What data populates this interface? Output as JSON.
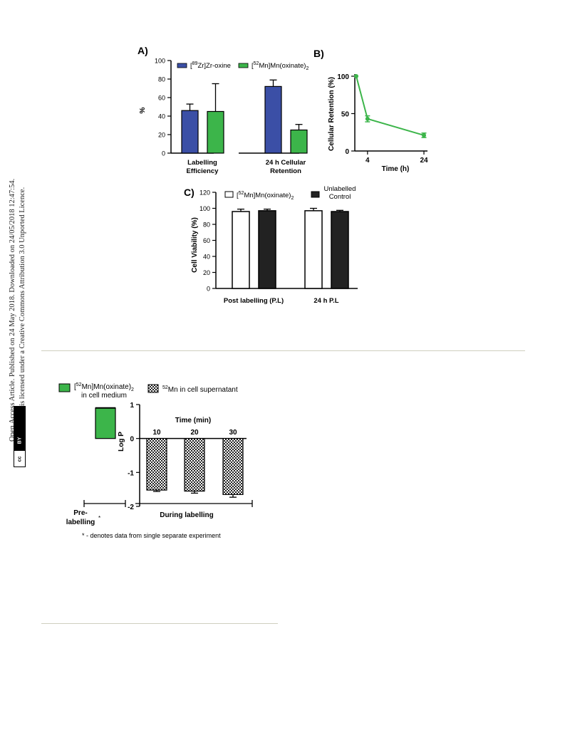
{
  "sidebar": {
    "line1": "Open Access Article. Published on 24 May 2018. Downloaded on 24/05/2018 12:47:54.",
    "line2": "This article is licensed under a Creative Commons Attribution 3.0 Unported Licence.",
    "badge_cc": "cc",
    "badge_by": "BY"
  },
  "colors": {
    "blue": "#3b4fa6",
    "green": "#3cb54a",
    "dark": "#222222",
    "rule": "#cfcfbf"
  },
  "chart_data": [
    {
      "panel": "A)",
      "type": "bar",
      "categories": [
        "Labelling Efficiency",
        "24 h Cellular Retention"
      ],
      "category_lines": [
        [
          "Labelling",
          "Efficiency"
        ],
        [
          "24 h Cellular",
          "Retention"
        ]
      ],
      "ylabel": "%",
      "ylim": [
        0,
        100
      ],
      "yticks": [
        "0",
        "20",
        "40",
        "60",
        "80",
        "100"
      ],
      "legend": [
        {
          "sup": "89",
          "pre": "[",
          "post": "Zr]Zr-oxine",
          "sub": ""
        },
        {
          "sup": "52",
          "pre": "[",
          "post": "Mn]Mn(oxinate)",
          "sub": "2"
        }
      ],
      "series": [
        {
          "values": [
            46,
            72
          ],
          "errors": [
            7,
            7
          ],
          "color": "#3b4fa6"
        },
        {
          "values": [
            45,
            25
          ],
          "errors": [
            30,
            6
          ],
          "color": "#3cb54a"
        }
      ]
    },
    {
      "panel": "B)",
      "type": "line",
      "x": [
        0,
        4,
        24
      ],
      "y": [
        100,
        43,
        21
      ],
      "errors": [
        0,
        4,
        3
      ],
      "xlabel": "Time (h)",
      "ylabel": "Cellular Retention (%)",
      "xticks": [
        "4",
        "24"
      ],
      "yticks": [
        "0",
        "50",
        "100"
      ],
      "ylim": [
        0,
        100
      ],
      "color": "#3cb54a"
    },
    {
      "panel": "C)",
      "type": "bar",
      "categories": [
        "Post labelling (P.L)",
        "24 h P.L"
      ],
      "ylabel": "Cell Viability  (%)",
      "ylim": [
        0,
        120
      ],
      "yticks": [
        "0",
        "20",
        "40",
        "60",
        "80",
        "100",
        "120"
      ],
      "legend": [
        {
          "sup": "52",
          "pre": "[",
          "post": "Mn]Mn(oxinate)",
          "sub": "2"
        },
        {
          "line1": "Unlabelled",
          "line2": "Control"
        }
      ],
      "series": [
        {
          "values": [
            96,
            97
          ],
          "errors": [
            3,
            3
          ],
          "fill": "#ffffff"
        },
        {
          "values": [
            97,
            96
          ],
          "errors": [
            2,
            1.5
          ],
          "fill": "#222222"
        }
      ]
    },
    {
      "type": "bar",
      "ylabel": "Log P",
      "ylim": [
        -2,
        1
      ],
      "yticks": [
        "1",
        "0",
        "-1",
        "-2"
      ],
      "xlabel_top": "Time (min)",
      "categories": [
        "10",
        "20",
        "30"
      ],
      "prelabelling": {
        "value": 0.9,
        "label_line1": "Pre-",
        "label_line2": "labelling",
        "asterisk": "*"
      },
      "series": [
        {
          "name": "in cell supernatant",
          "values": [
            -1.52,
            -1.55,
            -1.65
          ],
          "errors": [
            0.04,
            0.06,
            0.08
          ]
        }
      ],
      "prelabel_value": [
        0.9
      ],
      "bracket_label": "During labelling",
      "legend": [
        {
          "sup": "52",
          "pre": "[",
          "post": "Mn]Mn(oxinate)",
          "sub": "2",
          "line2": "in cell medium"
        },
        {
          "sup": "52",
          "post": "Mn in cell supernatant"
        }
      ],
      "footnote": "* - denotes data from single separate experiment"
    }
  ]
}
